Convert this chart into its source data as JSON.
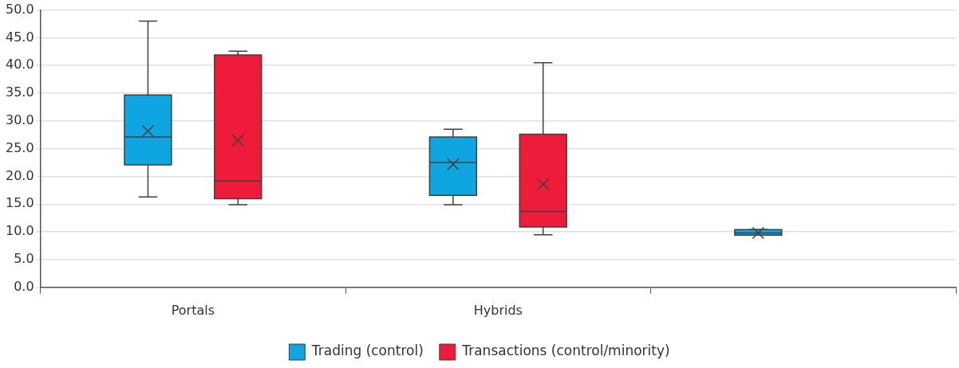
{
  "chart_data": {
    "type": "box",
    "categories": [
      "Portals",
      "Hybrids",
      null
    ],
    "ylim": [
      0,
      50
    ],
    "yticks": [
      {
        "value": 0,
        "label": "0.0"
      },
      {
        "value": 5,
        "label": "5.0"
      },
      {
        "value": 10,
        "label": "10.0"
      },
      {
        "value": 15,
        "label": "15.0"
      },
      {
        "value": 20,
        "label": "20.0"
      },
      {
        "value": 25,
        "label": "25.0"
      },
      {
        "value": 30,
        "label": "30.0"
      },
      {
        "value": 35,
        "label": "35.0"
      },
      {
        "value": 40,
        "label": "40.0"
      },
      {
        "value": 45,
        "label": "45.0"
      },
      {
        "value": 50,
        "label": "50.0"
      }
    ],
    "grid": "y",
    "legend": "bottom",
    "marker": "cross",
    "series": [
      {
        "name": "Trading (control)",
        "color": "#0ea5e0",
        "boxes": [
          {
            "low": 16.3,
            "q1": 22.1,
            "median": 27.1,
            "q3": 34.7,
            "high": 48.0,
            "mean": 28.2
          },
          {
            "low": 14.9,
            "q1": 16.6,
            "median": 22.5,
            "q3": 27.1,
            "high": 28.5,
            "mean": 22.2
          },
          {
            "low": 9.4,
            "q1": 9.4,
            "median": 9.8,
            "q3": 10.4,
            "high": 10.4,
            "mean": 9.8
          }
        ]
      },
      {
        "name": "Transactions (control/minority)",
        "color": "#ee1b3b",
        "boxes": [
          {
            "low": 14.9,
            "q1": 16.0,
            "median": 19.2,
            "q3": 41.9,
            "high": 42.6,
            "mean": 26.5
          },
          {
            "low": 9.5,
            "q1": 10.9,
            "median": 13.7,
            "q3": 27.6,
            "high": 40.5,
            "mean": 18.6
          },
          null
        ]
      }
    ]
  }
}
